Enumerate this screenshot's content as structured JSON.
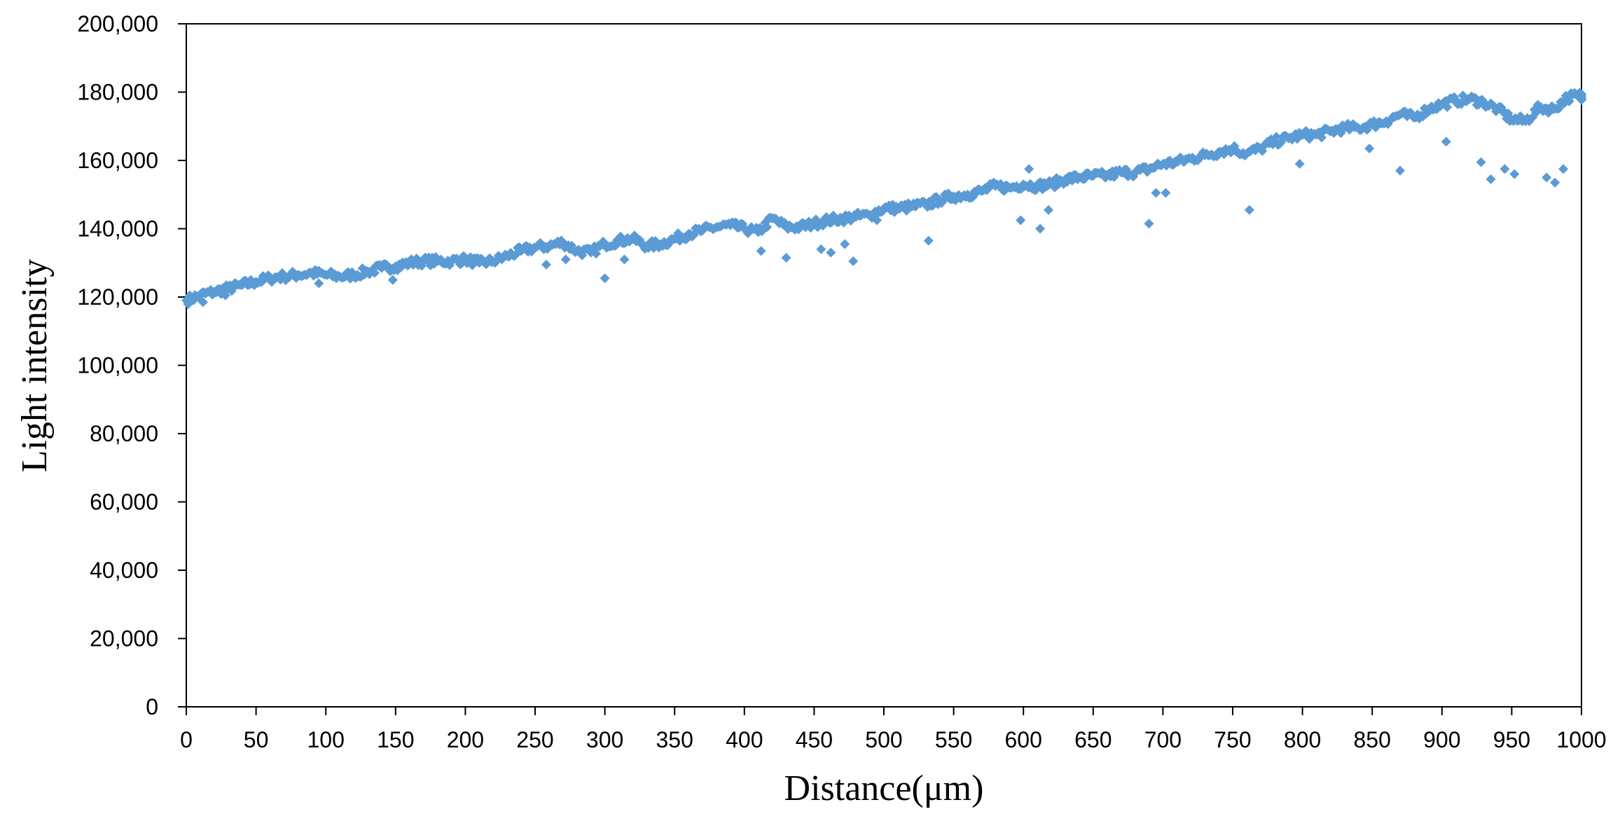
{
  "chart_data": {
    "type": "scatter",
    "title": "",
    "xlabel": "Distance(μm)",
    "ylabel": "Light  intensity",
    "xlim": [
      0,
      1000
    ],
    "ylim": [
      0,
      200000
    ],
    "x_ticks": [
      0,
      50,
      100,
      150,
      200,
      250,
      300,
      350,
      400,
      450,
      500,
      550,
      600,
      650,
      700,
      750,
      800,
      850,
      900,
      950,
      1000
    ],
    "x_tick_labels": [
      "0",
      "50",
      "100",
      "150",
      "200",
      "250",
      "300",
      "350",
      "400",
      "450",
      "500",
      "550",
      "600",
      "650",
      "700",
      "750",
      "800",
      "850",
      "900",
      "950",
      "1000"
    ],
    "y_ticks": [
      0,
      20000,
      40000,
      60000,
      80000,
      100000,
      120000,
      140000,
      160000,
      180000,
      200000
    ],
    "y_tick_labels": [
      "0",
      "20,000",
      "40,000",
      "60,000",
      "80,000",
      "100,000",
      "120,000",
      "140,000",
      "160,000",
      "180,000",
      "200,000"
    ],
    "grid": false,
    "legend": "none",
    "marker": "diamond",
    "colors": {
      "marker": "#5B9BD5",
      "axis": "#000000",
      "background": "#ffffff"
    },
    "series": [
      {
        "x": [
          0,
          10,
          20,
          30,
          40,
          50,
          60,
          70,
          80,
          90,
          100,
          110,
          120,
          130,
          140,
          150,
          160,
          170,
          180,
          190,
          200,
          210,
          220,
          230,
          240,
          250,
          260,
          270,
          280,
          290,
          300,
          310,
          320,
          330,
          340,
          350,
          360,
          370,
          380,
          390,
          400,
          410,
          420,
          430,
          440,
          450,
          460,
          470,
          480,
          490,
          500,
          510,
          520,
          530,
          540,
          550,
          560,
          570,
          580,
          590,
          600,
          610,
          620,
          630,
          640,
          650,
          660,
          670,
          680,
          690,
          700,
          710,
          720,
          730,
          740,
          750,
          760,
          770,
          780,
          790,
          800,
          810,
          820,
          830,
          840,
          850,
          860,
          870,
          880,
          890,
          900,
          910,
          920,
          930,
          940,
          950,
          960,
          970,
          980,
          990,
          1000
        ],
        "y": [
          119000,
          120500,
          121500,
          122500,
          123500,
          124500,
          125500,
          126000,
          126500,
          127000,
          126500,
          126000,
          126500,
          127500,
          128500,
          129000,
          130000,
          130500,
          130500,
          130500,
          131000,
          130000,
          130500,
          132000,
          133500,
          134500,
          135000,
          136000,
          133500,
          133000,
          135500,
          136500,
          137000,
          135000,
          135500,
          137000,
          138500,
          139500,
          140500,
          141000,
          140000,
          139000,
          143000,
          140500,
          140500,
          141500,
          142500,
          143000,
          143500,
          144000,
          146000,
          146000,
          146500,
          147000,
          148500,
          149500,
          150000,
          151000,
          152500,
          152000,
          153000,
          152500,
          153000,
          154500,
          155000,
          155500,
          155500,
          156500,
          156500,
          157500,
          159000,
          159500,
          160500,
          161500,
          162500,
          163500,
          162000,
          163500,
          165500,
          166500,
          167500,
          167500,
          168500,
          169500,
          169500,
          170500,
          171500,
          173500,
          172500,
          175000,
          176500,
          177500,
          178000,
          177000,
          175000,
          172000,
          171500,
          175500,
          175000,
          178500,
          179000
        ]
      },
      {
        "x": [
          12,
          28,
          95,
          148,
          258,
          272,
          300,
          314,
          412,
          430,
          455,
          462,
          472,
          478,
          495,
          532,
          598,
          604,
          612,
          618,
          690,
          695,
          702,
          762,
          798,
          848,
          870,
          903,
          928,
          935,
          945,
          952,
          975,
          981,
          987
        ],
        "y": [
          118500,
          120500,
          124000,
          125000,
          129500,
          131000,
          125500,
          131000,
          133500,
          131500,
          134000,
          133000,
          135500,
          130500,
          142500,
          136500,
          142500,
          157500,
          140000,
          145500,
          141500,
          150500,
          150500,
          145500,
          159000,
          163500,
          157000,
          165500,
          159500,
          154500,
          157500,
          156000,
          155000,
          153500,
          157500
        ]
      }
    ]
  }
}
